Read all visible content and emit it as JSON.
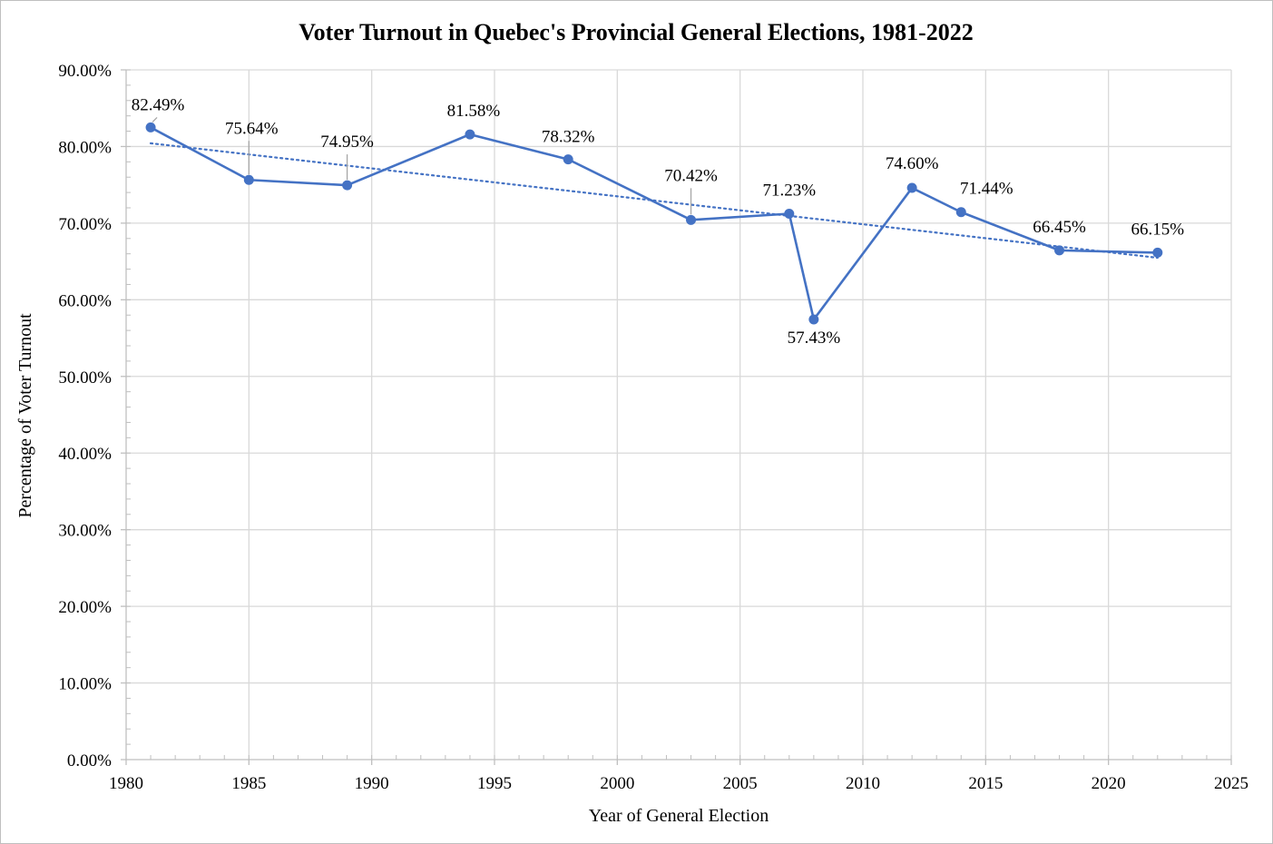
{
  "chart_data": {
    "type": "line",
    "title": "Voter Turnout in Quebec's Provincial General Elections, 1981-2022",
    "xlabel": "Year of General Election",
    "ylabel": "Percentage of Voter Turnout",
    "xlim": [
      1980,
      2025
    ],
    "ylim": [
      0,
      90
    ],
    "x_ticks": [
      1980,
      1985,
      1990,
      1995,
      2000,
      2005,
      2010,
      2015,
      2020,
      2025
    ],
    "y_ticks": [
      0,
      10,
      20,
      30,
      40,
      50,
      60,
      70,
      80,
      90
    ],
    "y_tick_labels": [
      "0.00%",
      "10.00%",
      "20.00%",
      "30.00%",
      "40.00%",
      "50.00%",
      "60.00%",
      "70.00%",
      "80.00%",
      "90.00%"
    ],
    "grid": true,
    "trendline": "linear, dotted",
    "series": [
      {
        "color": "#4472C4",
        "points": [
          {
            "x": 1981,
            "y": 82.49,
            "label": "82.49%"
          },
          {
            "x": 1985,
            "y": 75.64,
            "label": "75.64%"
          },
          {
            "x": 1989,
            "y": 74.95,
            "label": "74.95%"
          },
          {
            "x": 1994,
            "y": 81.58,
            "label": "81.58%"
          },
          {
            "x": 1998,
            "y": 78.32,
            "label": "78.32%"
          },
          {
            "x": 2003,
            "y": 70.42,
            "label": "70.42%"
          },
          {
            "x": 2007,
            "y": 71.23,
            "label": "71.23%"
          },
          {
            "x": 2008,
            "y": 57.43,
            "label": "57.43%"
          },
          {
            "x": 2012,
            "y": 74.6,
            "label": "74.60%"
          },
          {
            "x": 2014,
            "y": 71.44,
            "label": "71.44%"
          },
          {
            "x": 2018,
            "y": 66.45,
            "label": "66.45%"
          },
          {
            "x": 2022,
            "y": 66.15,
            "label": "66.15%"
          }
        ]
      }
    ]
  }
}
